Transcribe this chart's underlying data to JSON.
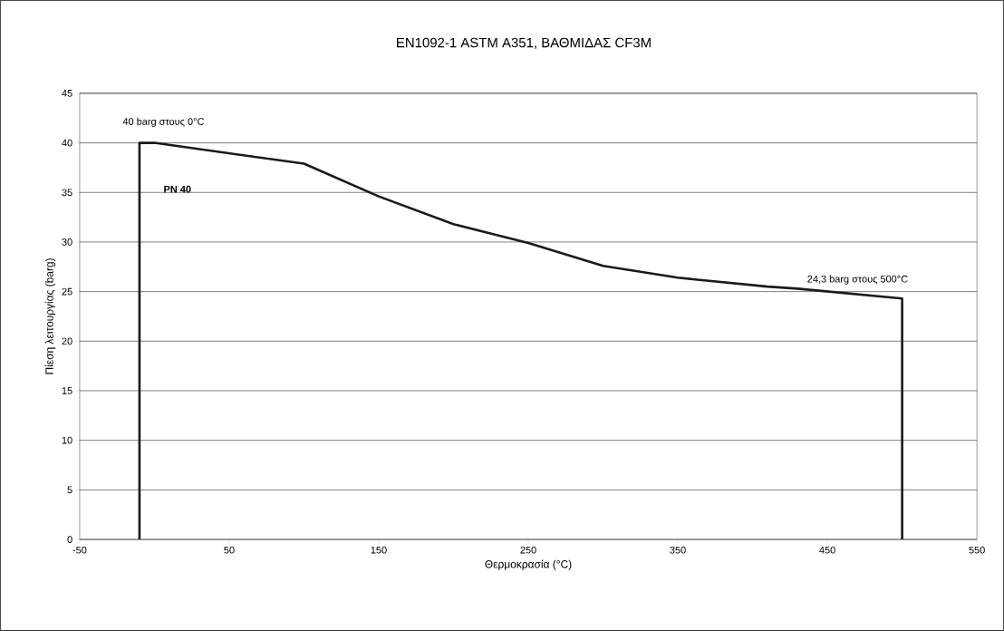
{
  "chart_data": {
    "type": "line",
    "title": "EN1092-1 ASTM A351, ΒΑΘΜΙΔΑΣ CF3M",
    "xlabel": "Θερμοκρασία (°C)",
    "ylabel": "Πίεση λειτουργίας (barg)",
    "x": [
      -10,
      -10,
      0,
      100,
      150,
      200,
      250,
      300,
      350,
      410,
      430,
      500,
      500
    ],
    "series": [
      {
        "color": "#1a1a1a",
        "values": [
          0,
          40,
          40,
          37.9,
          34.6,
          31.8,
          29.9,
          27.6,
          26.4,
          25.5,
          25.3,
          24.3,
          0
        ]
      }
    ],
    "xlim": [
      -50,
      550
    ],
    "xticks": [
      -50,
      50,
      150,
      250,
      350,
      450,
      550
    ],
    "ylim": [
      0,
      45
    ],
    "yticks": [
      0,
      5,
      10,
      15,
      20,
      25,
      30,
      35,
      40,
      45
    ],
    "grid": "y",
    "marker": "none",
    "line_style": "solid",
    "annotations": [
      {
        "text": "40 barg στους 0°C",
        "x": 0,
        "y": 40
      },
      "**PN 40**",
      {
        "text": "24,3 barg στους 500°C",
        "x": 500,
        "y": 24.3
      }
    ]
  }
}
